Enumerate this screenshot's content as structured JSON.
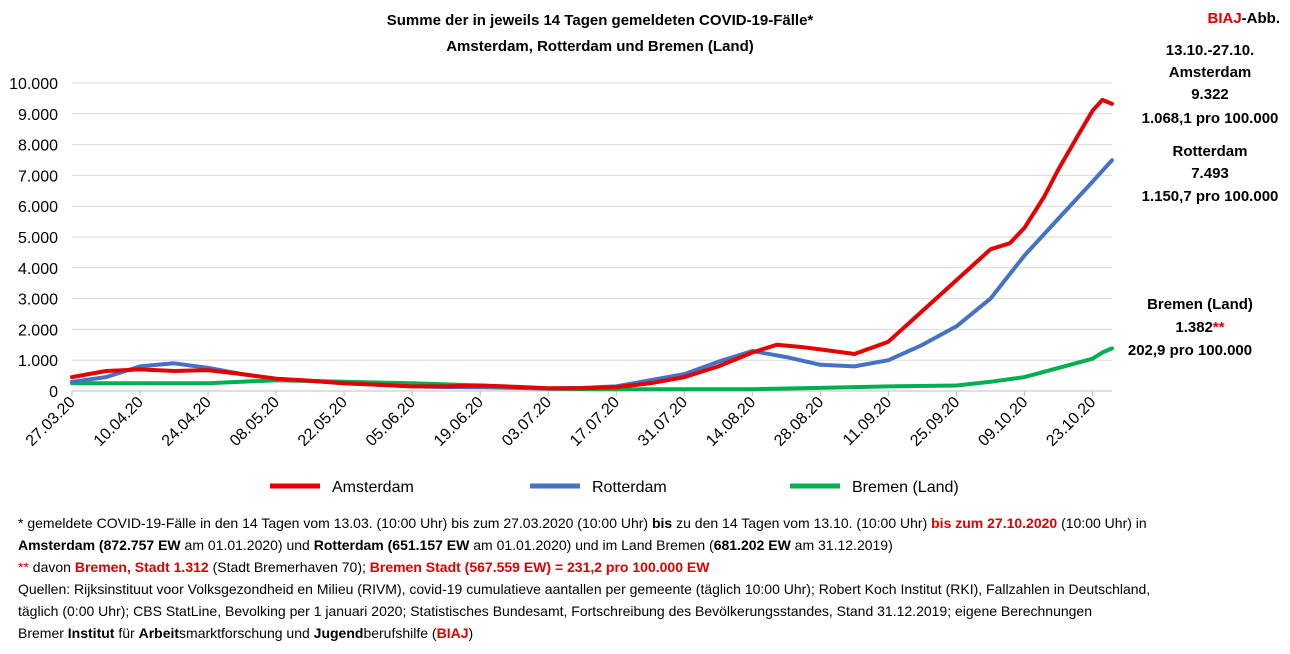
{
  "header": {
    "title_line1": "Summe der in jeweils 14 Tagen gemeldeten COVID-19-Fälle*",
    "title_line2": "Amsterdam, Rotterdam und Bremen (Land)",
    "badge_red": "BIAJ",
    "badge_rest": "-Abb."
  },
  "side": {
    "period": "13.10.-27.10.",
    "amsterdam_name": "Amsterdam",
    "amsterdam_value": "9.322",
    "amsterdam_rate": "1.068,1 pro 100.000",
    "rotterdam_name": "Rotterdam",
    "rotterdam_value": "7.493",
    "rotterdam_rate": "1.150,7 pro 100.000",
    "bremen_name": "Bremen (Land)",
    "bremen_value": "1.382",
    "bremen_marker": "**",
    "bremen_rate": "202,9 pro 100.000"
  },
  "footnotes": {
    "l1_a": "* gemeldete COVID-19-Fälle in den 14 Tagen vom 13.03. (10:00 Uhr) bis zum 27.03.2020 (10:00 Uhr) ",
    "l1_b": "bis",
    "l1_c": " zu den 14 Tagen vom 13.10. (10:00 Uhr) ",
    "l1_d": "bis zum 27.10.2020",
    "l1_e": " (10:00 Uhr) in",
    "l2_a": "Amsterdam (872.757 EW",
    "l2_b": " am 01.01.2020) und ",
    "l2_c": "Rotterdam (651.157 EW",
    "l2_d": " am 01.01.2020) und im Land Bremen (",
    "l2_e": "681.202 EW",
    "l2_f": " am 31.12.2019)",
    "l3_a": "**",
    "l3_b": " davon ",
    "l3_c": "Bremen, Stadt 1.312",
    "l3_d": " (Stadt Bremerhaven 70); ",
    "l3_e": "Bremen Stadt (567.559 EW) = 231,2 pro 100.000 EW",
    "l4": "Quellen: Rijksinstituut voor Volksgezondheid en Milieu (RIVM), covid-19 cumulatieve aantallen per gemeente (täglich 10:00 Uhr); Robert Koch Institut (RKI), Fallzahlen in Deutschland,",
    "l5": "täglich (0:00 Uhr); CBS StatLine, Bevolking per 1 januari 2020; Statistisches Bundesamt, Fortschreibung des Bevölkerungsstandes, Stand 31.12.2019; eigene Berechnungen",
    "l6_a": "Bremer ",
    "l6_b": "Institut",
    "l6_c": " für ",
    "l6_d": "Arbeit",
    "l6_e": "smarktforschung und ",
    "l6_f": "Jugend",
    "l6_g": "berufshilfe (",
    "l6_h": "BIAJ",
    "l6_i": ")"
  },
  "colors": {
    "amsterdam": "#e60000",
    "rotterdam": "#4472c4",
    "bremen": "#00b050",
    "emphasis": "#c00000"
  },
  "chart_data": {
    "type": "line",
    "title": "Summe der in jeweils 14 Tagen gemeldeten COVID-19-Fälle*",
    "subtitle": "Amsterdam, Rotterdam und Bremen (Land)",
    "x_start": "2020-03-27",
    "x_end": "2020-10-27",
    "x_ticks": [
      "27.03.20",
      "10.04.20",
      "24.04.20",
      "08.05.20",
      "22.05.20",
      "05.06.20",
      "19.06.20",
      "03.07.20",
      "17.07.20",
      "31.07.20",
      "14.08.20",
      "28.08.20",
      "11.09.20",
      "25.09.20",
      "09.10.20",
      "23.10.20"
    ],
    "ylim": [
      0,
      10000
    ],
    "y_ticks": [
      "0",
      "1.000",
      "2.000",
      "3.000",
      "4.000",
      "5.000",
      "6.000",
      "7.000",
      "8.000",
      "9.000",
      "10.000"
    ],
    "y_tick_values": [
      0,
      1000,
      2000,
      3000,
      4000,
      5000,
      6000,
      7000,
      8000,
      9000,
      10000
    ],
    "grid": "horizontal",
    "legend": "bottom",
    "series": [
      {
        "name": "Amsterdam",
        "points": [
          [
            "2020-03-27",
            450
          ],
          [
            "2020-04-03",
            650
          ],
          [
            "2020-04-10",
            700
          ],
          [
            "2020-04-17",
            650
          ],
          [
            "2020-04-24",
            680
          ],
          [
            "2020-05-01",
            550
          ],
          [
            "2020-05-08",
            400
          ],
          [
            "2020-05-15",
            330
          ],
          [
            "2020-05-22",
            250
          ],
          [
            "2020-05-29",
            200
          ],
          [
            "2020-06-05",
            150
          ],
          [
            "2020-06-12",
            150
          ],
          [
            "2020-06-19",
            180
          ],
          [
            "2020-06-26",
            140
          ],
          [
            "2020-07-03",
            90
          ],
          [
            "2020-07-10",
            90
          ],
          [
            "2020-07-17",
            130
          ],
          [
            "2020-07-24",
            250
          ],
          [
            "2020-07-31",
            450
          ],
          [
            "2020-08-07",
            800
          ],
          [
            "2020-08-14",
            1250
          ],
          [
            "2020-08-19",
            1500
          ],
          [
            "2020-08-24",
            1430
          ],
          [
            "2020-08-28",
            1350
          ],
          [
            "2020-09-04",
            1200
          ],
          [
            "2020-09-11",
            1600
          ],
          [
            "2020-09-18",
            2600
          ],
          [
            "2020-09-25",
            3600
          ],
          [
            "2020-10-02",
            4600
          ],
          [
            "2020-10-06",
            4800
          ],
          [
            "2020-10-09",
            5300
          ],
          [
            "2020-10-13",
            6300
          ],
          [
            "2020-10-16",
            7200
          ],
          [
            "2020-10-20",
            8300
          ],
          [
            "2020-10-23",
            9100
          ],
          [
            "2020-10-25",
            9450
          ],
          [
            "2020-10-27",
            9322
          ]
        ]
      },
      {
        "name": "Rotterdam",
        "points": [
          [
            "2020-03-27",
            300
          ],
          [
            "2020-04-03",
            450
          ],
          [
            "2020-04-10",
            800
          ],
          [
            "2020-04-17",
            900
          ],
          [
            "2020-04-24",
            750
          ],
          [
            "2020-05-01",
            550
          ],
          [
            "2020-05-08",
            400
          ],
          [
            "2020-05-15",
            330
          ],
          [
            "2020-05-22",
            250
          ],
          [
            "2020-05-29",
            200
          ],
          [
            "2020-06-05",
            150
          ],
          [
            "2020-06-12",
            130
          ],
          [
            "2020-06-19",
            120
          ],
          [
            "2020-06-26",
            100
          ],
          [
            "2020-07-03",
            80
          ],
          [
            "2020-07-10",
            100
          ],
          [
            "2020-07-17",
            150
          ],
          [
            "2020-07-24",
            350
          ],
          [
            "2020-07-31",
            550
          ],
          [
            "2020-08-07",
            950
          ],
          [
            "2020-08-14",
            1300
          ],
          [
            "2020-08-21",
            1100
          ],
          [
            "2020-08-28",
            850
          ],
          [
            "2020-09-04",
            800
          ],
          [
            "2020-09-11",
            1000
          ],
          [
            "2020-09-18",
            1500
          ],
          [
            "2020-09-25",
            2100
          ],
          [
            "2020-10-02",
            3000
          ],
          [
            "2020-10-09",
            4400
          ],
          [
            "2020-10-16",
            5600
          ],
          [
            "2020-10-23",
            6800
          ],
          [
            "2020-10-27",
            7493
          ]
        ]
      },
      {
        "name": "Bremen (Land)",
        "points": [
          [
            "2020-03-27",
            250
          ],
          [
            "2020-04-10",
            250
          ],
          [
            "2020-04-24",
            250
          ],
          [
            "2020-05-08",
            350
          ],
          [
            "2020-05-22",
            300
          ],
          [
            "2020-06-05",
            250
          ],
          [
            "2020-06-19",
            180
          ],
          [
            "2020-07-03",
            70
          ],
          [
            "2020-07-17",
            60
          ],
          [
            "2020-07-31",
            60
          ],
          [
            "2020-08-14",
            60
          ],
          [
            "2020-08-28",
            100
          ],
          [
            "2020-09-11",
            150
          ],
          [
            "2020-09-25",
            180
          ],
          [
            "2020-10-02",
            300
          ],
          [
            "2020-10-09",
            450
          ],
          [
            "2020-10-16",
            750
          ],
          [
            "2020-10-23",
            1050
          ],
          [
            "2020-10-25",
            1250
          ],
          [
            "2020-10-27",
            1382
          ]
        ]
      }
    ]
  }
}
